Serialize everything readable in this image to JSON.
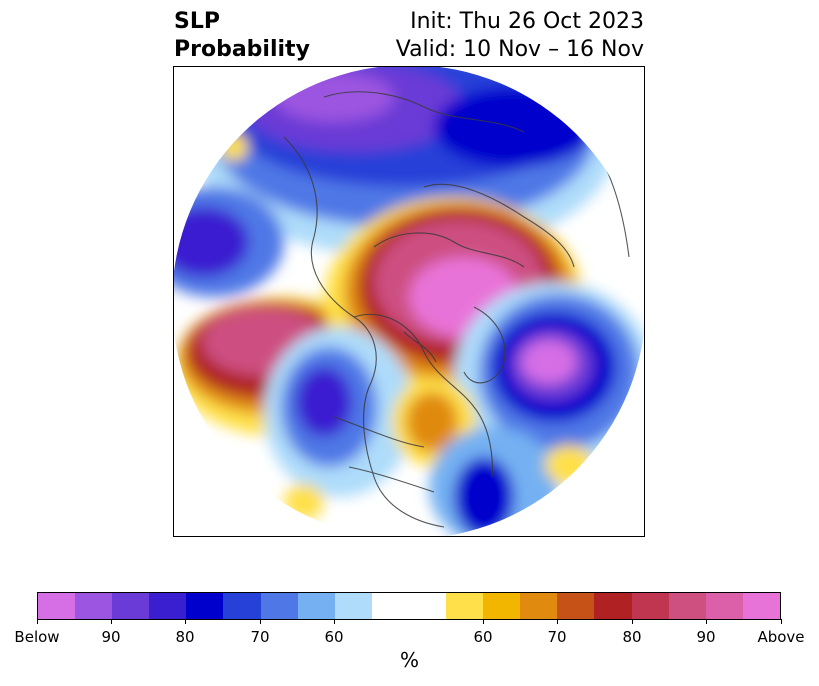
{
  "title": {
    "left_line1": "SLP",
    "left_line2": "Probability",
    "right_line1": "Init: Thu 26 Oct 2023",
    "right_line2": "Valid: 10 Nov – 16 Nov"
  },
  "colorbar": {
    "unit_label": "%",
    "colors": [
      "#d66ee6",
      "#9b55e0",
      "#6a3bd6",
      "#3a1fd0",
      "#0000cc",
      "#2541d8",
      "#4f78e6",
      "#75b1f2",
      "#aedcfa",
      "#ffffff",
      "#ffe04a",
      "#f2b600",
      "#e08a10",
      "#c75218",
      "#b02124",
      "#c03550",
      "#cd5081",
      "#db60a9",
      "#e873d8"
    ],
    "tick_labels": [
      "Below",
      "90",
      "80",
      "70",
      "60",
      "60",
      "70",
      "80",
      "90",
      "Above"
    ]
  },
  "map": {
    "projection": "north-polar-stereographic",
    "colors": {
      "ocean": "#ffffff",
      "coast": "#3a3a3a",
      "below_far": "#d66ee6",
      "below_90": "#9b55e0",
      "below_80": "#3a1fd0",
      "below_70": "#2541d8",
      "below_60": "#4f78e6",
      "below_55": "#75b1f2",
      "below_50": "#aedcfa",
      "above_50": "#ffe04a",
      "above_60": "#f2b600",
      "above_70": "#e08a10",
      "above_75": "#c75218",
      "above_80": "#b02124",
      "above_85": "#c03550",
      "above_90": "#cd5081",
      "above_far": "#db60a9",
      "above_max": "#e873d8"
    }
  }
}
